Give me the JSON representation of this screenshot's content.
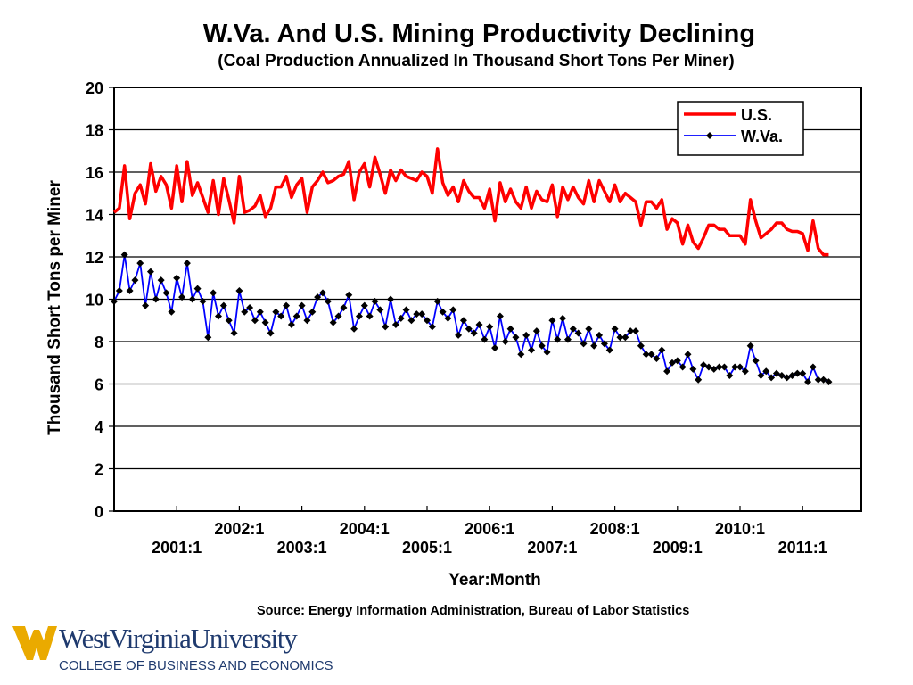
{
  "chart_data": {
    "type": "line",
    "title": "W.Va. And U.S. Mining Productivity Declining",
    "subtitle": "(Coal Production Annualized In Thousand Short Tons Per Miner)",
    "xlabel": "Year:Month",
    "ylabel": "Thousand Short Tons per Miner",
    "ylim": [
      0,
      20
    ],
    "yticks": [
      "0",
      "2",
      "4",
      "6",
      "8",
      "10",
      "12",
      "14",
      "16",
      "18",
      "20"
    ],
    "x_start": "2000:1",
    "x_frequency": "monthly",
    "xtick_labels_upper": [
      "2002:1",
      "2004:1",
      "2006:1",
      "2008:1",
      "2010:1"
    ],
    "xtick_labels_lower": [
      "2001:1",
      "2003:1",
      "2005:1",
      "2007:1",
      "2009:1",
      "2011:1"
    ],
    "grid": true,
    "legend_position": "top-right",
    "series": [
      {
        "name": "U.S.",
        "color": "#ff0000",
        "marker": "none",
        "values": [
          14.1,
          14.3,
          16.3,
          13.8,
          15.0,
          15.4,
          14.5,
          16.4,
          15.1,
          15.8,
          15.4,
          14.3,
          16.3,
          14.6,
          16.5,
          14.9,
          15.5,
          14.8,
          14.1,
          15.6,
          14.0,
          15.7,
          14.7,
          13.6,
          15.8,
          14.1,
          14.2,
          14.4,
          14.9,
          13.9,
          14.3,
          15.3,
          15.3,
          15.8,
          14.8,
          15.4,
          15.7,
          14.1,
          15.3,
          15.6,
          16.0,
          15.5,
          15.6,
          15.8,
          15.9,
          16.5,
          14.7,
          16.0,
          16.4,
          15.3,
          16.7,
          15.9,
          15.0,
          16.1,
          15.6,
          16.1,
          15.8,
          15.7,
          15.6,
          16.0,
          15.8,
          15.0,
          17.1,
          15.5,
          14.9,
          15.3,
          14.6,
          15.6,
          15.1,
          14.8,
          14.8,
          14.3,
          15.2,
          13.7,
          15.5,
          14.6,
          15.2,
          14.6,
          14.3,
          15.3,
          14.3,
          15.1,
          14.7,
          14.6,
          15.4,
          13.9,
          15.3,
          14.7,
          15.3,
          14.8,
          14.5,
          15.6,
          14.6,
          15.6,
          15.1,
          14.6,
          15.4,
          14.6,
          15.0,
          14.8,
          14.6,
          13.5,
          14.6,
          14.6,
          14.3,
          14.7,
          13.3,
          13.8,
          13.6,
          12.6,
          13.5,
          12.7,
          12.4,
          12.9,
          13.5,
          13.5,
          13.3,
          13.3,
          13.0,
          13.0,
          13.0,
          12.6,
          14.7,
          13.7,
          12.9,
          13.1,
          13.3,
          13.6,
          13.6,
          13.3,
          13.2,
          13.2,
          13.1,
          12.3,
          13.7,
          12.4,
          12.1,
          12.1
        ]
      },
      {
        "name": "W.Va.",
        "color": "#0000ff",
        "marker": "diamond",
        "values": [
          9.9,
          10.4,
          12.1,
          10.4,
          10.9,
          11.7,
          9.7,
          11.3,
          10.0,
          10.9,
          10.3,
          9.4,
          11.0,
          10.1,
          11.7,
          10.0,
          10.5,
          9.9,
          8.2,
          10.3,
          9.2,
          9.7,
          9.0,
          8.4,
          10.4,
          9.4,
          9.6,
          9.0,
          9.4,
          8.9,
          8.4,
          9.4,
          9.2,
          9.7,
          8.8,
          9.2,
          9.7,
          9.0,
          9.4,
          10.1,
          10.3,
          9.9,
          8.9,
          9.2,
          9.6,
          10.2,
          8.6,
          9.2,
          9.7,
          9.2,
          9.9,
          9.5,
          8.7,
          10.0,
          8.8,
          9.1,
          9.5,
          9.0,
          9.3,
          9.3,
          9.0,
          8.7,
          9.9,
          9.4,
          9.1,
          9.5,
          8.3,
          9.0,
          8.6,
          8.4,
          8.8,
          8.1,
          8.7,
          7.7,
          9.2,
          8.0,
          8.6,
          8.2,
          7.4,
          8.3,
          7.6,
          8.5,
          7.8,
          7.5,
          9.0,
          8.1,
          9.1,
          8.1,
          8.6,
          8.4,
          7.9,
          8.6,
          7.8,
          8.3,
          7.9,
          7.6,
          8.6,
          8.2,
          8.2,
          8.5,
          8.5,
          7.8,
          7.4,
          7.4,
          7.2,
          7.6,
          6.6,
          7.0,
          7.1,
          6.8,
          7.4,
          6.7,
          6.2,
          6.9,
          6.8,
          6.7,
          6.8,
          6.8,
          6.4,
          6.8,
          6.8,
          6.6,
          7.8,
          7.1,
          6.4,
          6.6,
          6.3,
          6.5,
          6.4,
          6.3,
          6.4,
          6.5,
          6.5,
          6.1,
          6.8,
          6.2,
          6.2,
          6.1
        ]
      }
    ],
    "source": "Source: Energy Information Administration, Bureau of Labor Statistics"
  },
  "logo": {
    "name": "WestVirginiaUniversity",
    "subtitle": "COLLEGE OF BUSINESS AND ECONOMICS",
    "colors": {
      "gold": "#eaaa00",
      "blue": "#1f3a6e"
    }
  }
}
